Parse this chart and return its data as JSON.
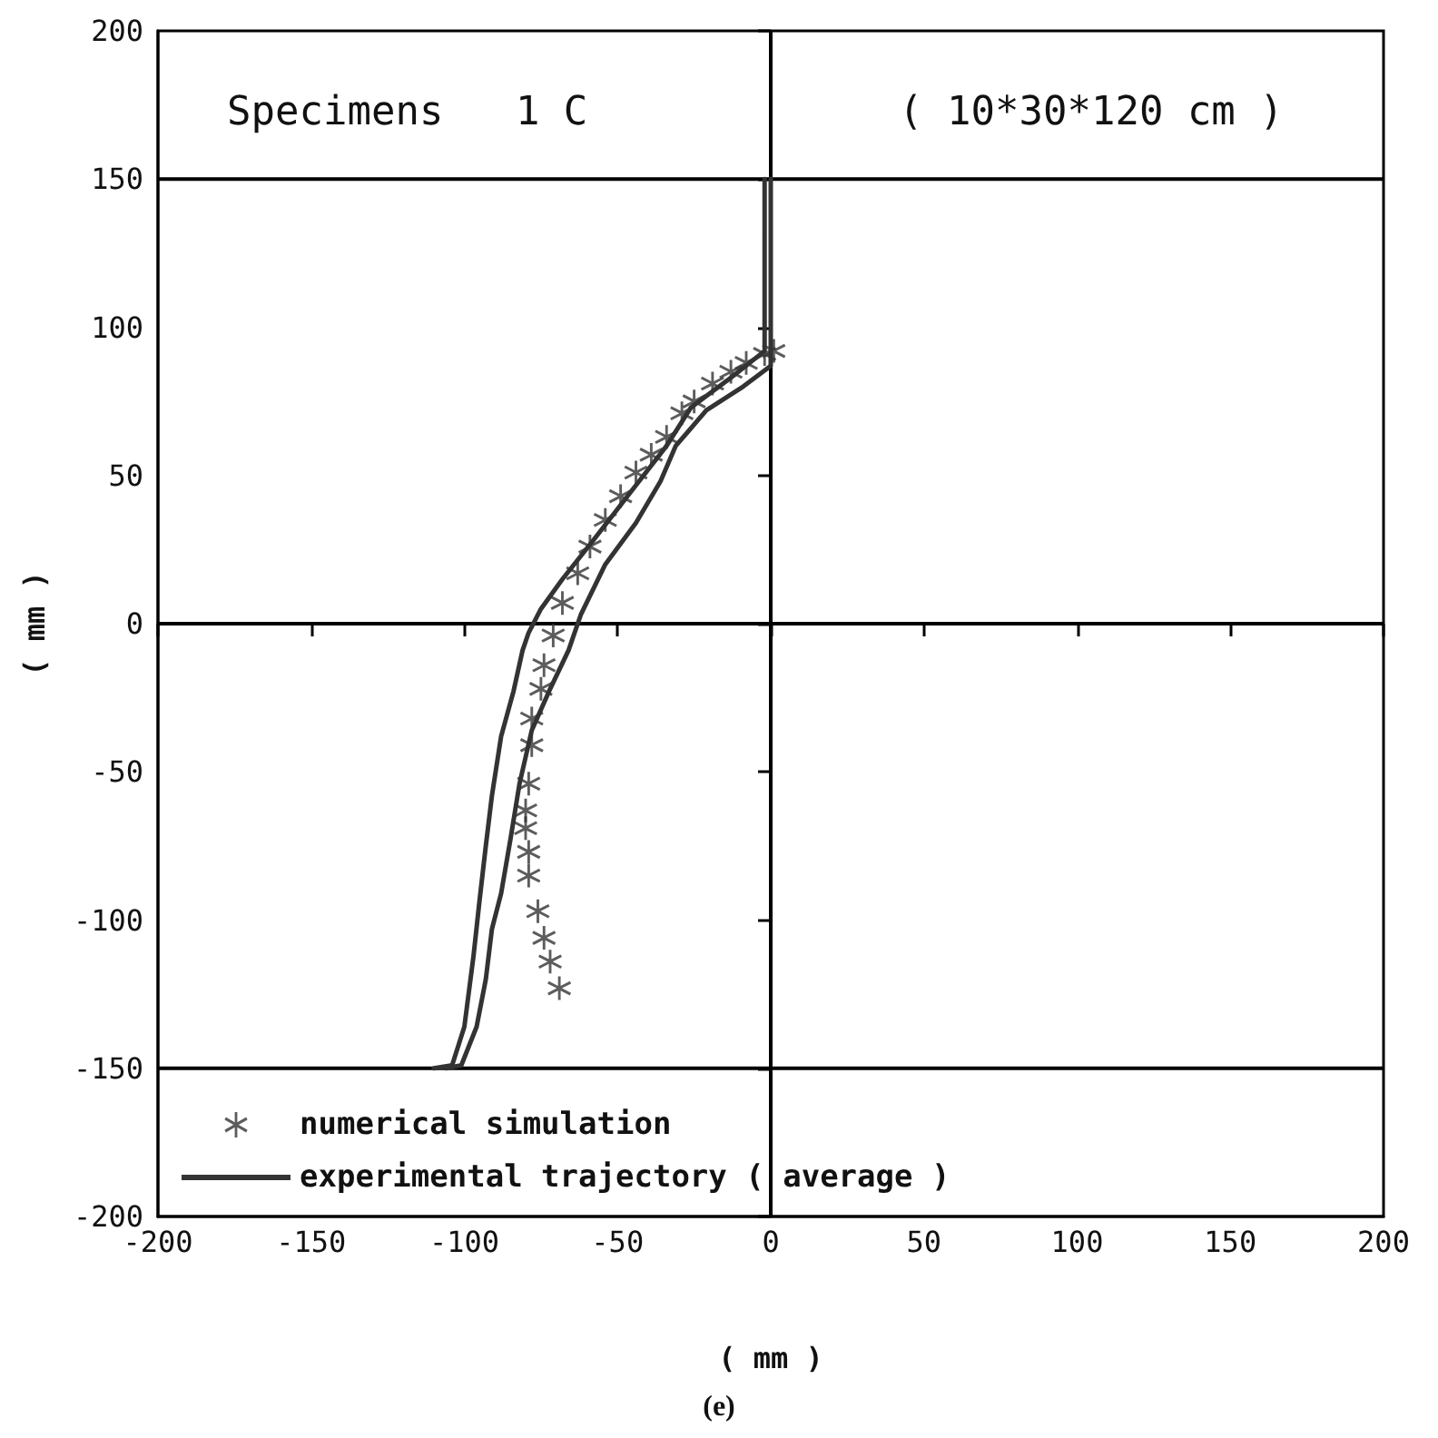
{
  "chart_data": {
    "type": "line",
    "title": "Specimens   1 C",
    "subtitle": "( 10*30*120 cm )",
    "xlabel": "( mm )",
    "ylabel": "( mm )",
    "annotations": [
      "(e)"
    ],
    "xlim": [
      -200,
      200
    ],
    "xticks": [
      -200,
      -150,
      -100,
      -50,
      0,
      50,
      100,
      150,
      200
    ],
    "ylim": [
      -200,
      200
    ],
    "yticks": [
      -200,
      -150,
      -100,
      -50,
      0,
      50,
      100,
      150,
      200
    ],
    "grid": false,
    "legend": "bottom left",
    "ref_lines": [
      {
        "axis": "x",
        "value": 0,
        "color": "#000000"
      },
      {
        "axis": "y",
        "value": 0,
        "color": "#000000"
      },
      {
        "axis": "y",
        "value": 150,
        "color": "#000000"
      },
      {
        "axis": "y",
        "value": -150,
        "color": "#000000"
      }
    ],
    "series": [
      {
        "name": "numerical simulation",
        "type": "scatter",
        "marker": "star",
        "color": "#333333",
        "x": [
          1,
          -2,
          -8,
          -13,
          -19,
          -25,
          -29,
          -34,
          -39,
          -44,
          -49,
          -54,
          -59,
          -63,
          -68,
          -71,
          -74,
          -75,
          -78,
          -78,
          -79,
          -80,
          -80,
          -79,
          -79,
          -76,
          -74,
          -72,
          -69
        ],
        "values": [
          92,
          91,
          88,
          85,
          81,
          75,
          71,
          63,
          57,
          51,
          43,
          35,
          26,
          17,
          7,
          -4,
          -14,
          -22,
          -32,
          -41,
          -54,
          -63,
          -69,
          -77,
          -85,
          -97,
          -106,
          -114,
          -123
        ]
      },
      {
        "name": "experimental trajectory ( average )",
        "color": "#333333",
        "x": [
          0,
          0,
          -9,
          -21,
          -31,
          -36,
          -44,
          -54,
          -62,
          -66,
          -72,
          -78,
          -82,
          -85,
          -88,
          -91,
          -93,
          -96,
          -101,
          -106
        ],
        "values": [
          150,
          87,
          80,
          72,
          60,
          48,
          34,
          20,
          3,
          -9,
          -22,
          -36,
          -54,
          -73,
          -91,
          -103,
          -120,
          -136,
          -149,
          -150
        ]
      },
      {
        "type": "line",
        "color": "#333333",
        "x": [
          -2,
          -2,
          -13,
          -26,
          -34,
          -46,
          -58,
          -68,
          -75,
          -79,
          -81,
          -84,
          -88,
          -91,
          -93,
          -95,
          -97,
          -100,
          -104,
          -110
        ],
        "values": [
          150,
          92,
          83,
          73,
          60,
          44,
          28,
          15,
          5,
          -3,
          -9,
          -23,
          -38,
          -58,
          -75,
          -93,
          -112,
          -136,
          -149,
          -150
        ]
      }
    ]
  }
}
